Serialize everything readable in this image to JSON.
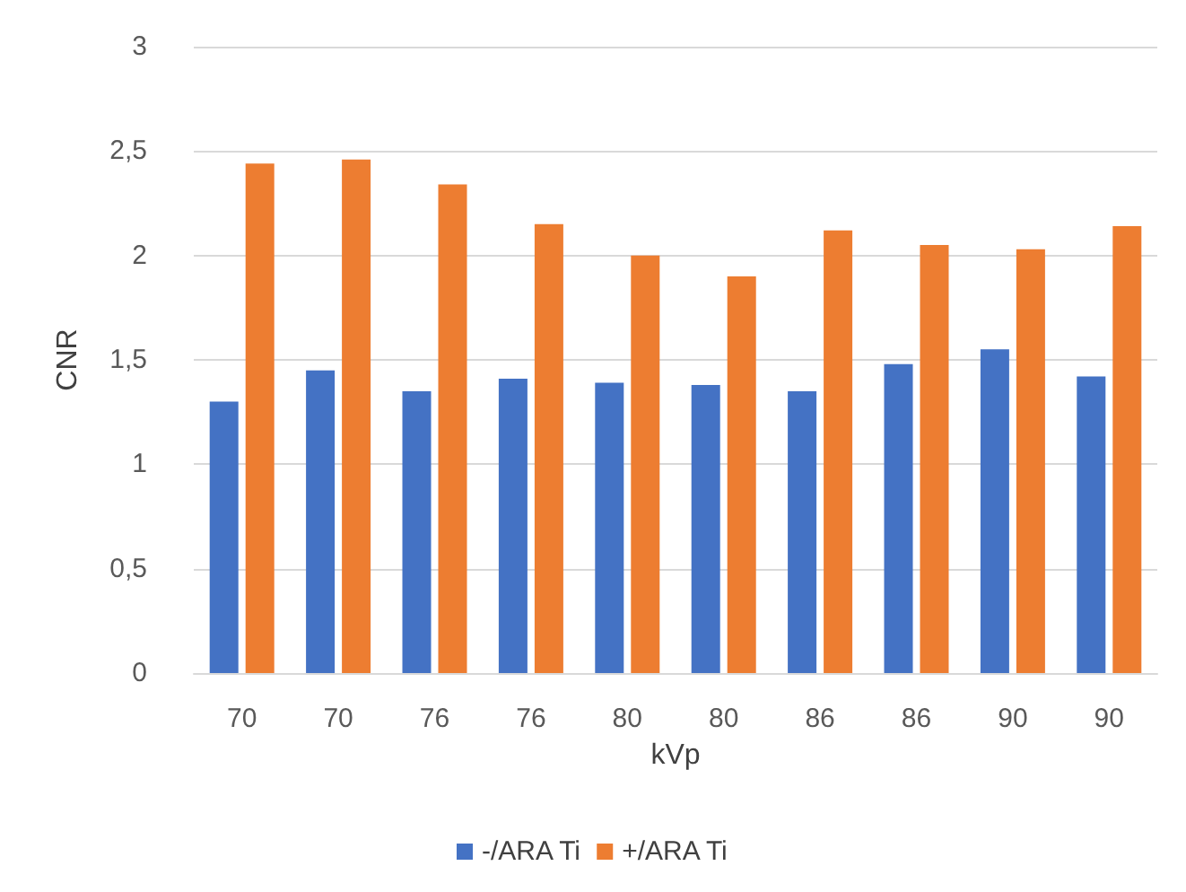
{
  "chart_data": {
    "type": "bar",
    "xlabel": "kVp",
    "ylabel": "CNR",
    "categories": [
      "70",
      "70",
      "76",
      "76",
      "80",
      "80",
      "86",
      "86",
      "90",
      "90"
    ],
    "series": [
      {
        "name": "-/ARA Ti",
        "color": "#4472c4",
        "values": [
          1.3,
          1.45,
          1.35,
          1.41,
          1.39,
          1.38,
          1.35,
          1.48,
          1.55,
          1.42
        ]
      },
      {
        "name": "+/ARA Ti",
        "color": "#ed7d31",
        "values": [
          2.44,
          2.46,
          2.34,
          2.15,
          2.0,
          1.9,
          2.12,
          2.05,
          2.03,
          2.14
        ]
      }
    ],
    "ylim": [
      0,
      3
    ],
    "yticks": [
      0,
      {
        "value": 0.5,
        "label": "0,5"
      },
      1,
      {
        "value": 1.5,
        "label": "1,5"
      },
      2,
      {
        "value": 2.5,
        "label": "2,5"
      },
      3
    ],
    "grid": "y",
    "legend": "bottom"
  }
}
